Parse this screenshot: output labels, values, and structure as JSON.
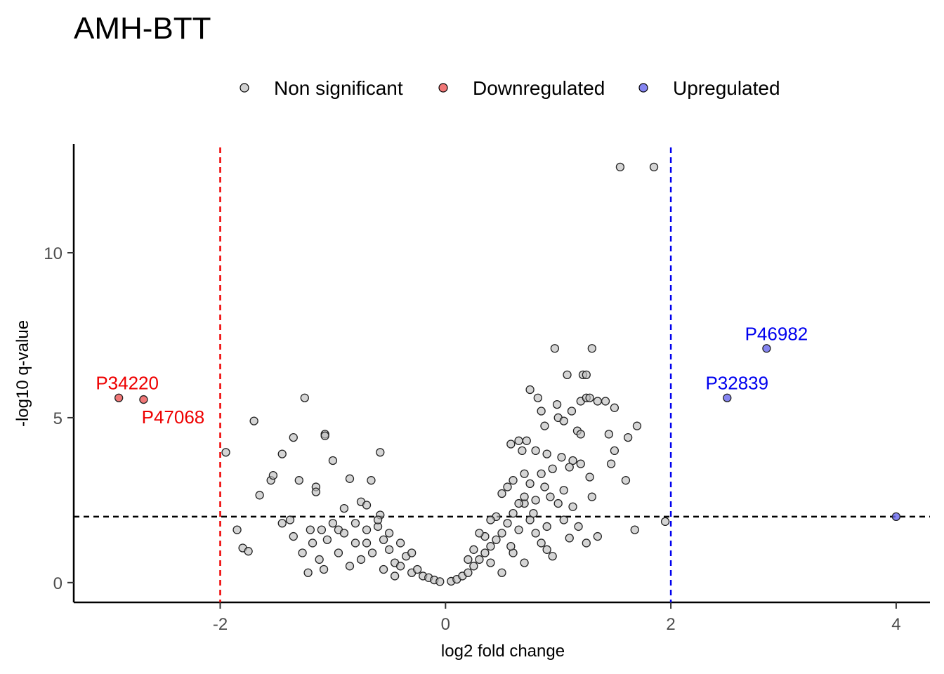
{
  "chart_data": {
    "type": "scatter",
    "title": "AMH-BTT",
    "xlabel": "log2 fold change",
    "ylabel": "-log10 q-value",
    "xlim": [
      -3.3,
      4.3
    ],
    "ylim": [
      -0.6,
      13.3
    ],
    "x_ticks": [
      {
        "value": -2,
        "label": "-2"
      },
      {
        "value": 0,
        "label": "0"
      },
      {
        "value": 2,
        "label": "2"
      },
      {
        "value": 4,
        "label": "4"
      }
    ],
    "y_ticks": [
      {
        "value": 0,
        "label": "0"
      },
      {
        "value": 5,
        "label": "5"
      },
      {
        "value": 10,
        "label": "10"
      }
    ],
    "grid": false,
    "legend_position": "top",
    "thresholds": {
      "fold_change_low": -2,
      "fold_change_high": 2,
      "q_value_line": 2
    },
    "series": [
      {
        "name": "Non significant",
        "color": "#bebebe",
        "points": [
          [
            1.55,
            12.6
          ],
          [
            1.85,
            12.6
          ],
          [
            0.97,
            7.1
          ],
          [
            1.3,
            7.1
          ],
          [
            1.08,
            6.3
          ],
          [
            1.22,
            6.3
          ],
          [
            1.25,
            6.3
          ],
          [
            0.75,
            5.85
          ],
          [
            0.82,
            5.6
          ],
          [
            1.2,
            5.5
          ],
          [
            1.25,
            5.6
          ],
          [
            1.28,
            5.6
          ],
          [
            1.35,
            5.5
          ],
          [
            1.42,
            5.5
          ],
          [
            1.5,
            5.3
          ],
          [
            0.99,
            5.4
          ],
          [
            0.85,
            5.2
          ],
          [
            1.12,
            5.2
          ],
          [
            1.0,
            5.0
          ],
          [
            1.05,
            4.9
          ],
          [
            0.88,
            4.75
          ],
          [
            1.17,
            4.6
          ],
          [
            1.2,
            4.5
          ],
          [
            1.45,
            4.5
          ],
          [
            1.7,
            4.75
          ],
          [
            1.62,
            4.4
          ],
          [
            1.5,
            4.0
          ],
          [
            1.47,
            3.6
          ],
          [
            1.6,
            3.1
          ],
          [
            0.72,
            4.3
          ],
          [
            0.65,
            4.3
          ],
          [
            0.58,
            4.2
          ],
          [
            0.68,
            4.0
          ],
          [
            0.8,
            4.0
          ],
          [
            0.9,
            3.9
          ],
          [
            1.03,
            3.8
          ],
          [
            1.13,
            3.7
          ],
          [
            1.2,
            3.6
          ],
          [
            1.28,
            3.2
          ],
          [
            1.1,
            3.5
          ],
          [
            0.95,
            3.45
          ],
          [
            0.85,
            3.3
          ],
          [
            0.7,
            3.3
          ],
          [
            0.6,
            3.1
          ],
          [
            0.75,
            3.0
          ],
          [
            0.88,
            2.9
          ],
          [
            1.05,
            2.8
          ],
          [
            0.93,
            2.6
          ],
          [
            0.8,
            2.5
          ],
          [
            1.3,
            2.6
          ],
          [
            0.7,
            2.4
          ],
          [
            1.0,
            2.4
          ],
          [
            1.13,
            2.3
          ],
          [
            1.18,
            1.7
          ],
          [
            1.35,
            1.4
          ],
          [
            1.68,
            1.6
          ],
          [
            1.95,
            1.85
          ],
          [
            1.25,
            1.2
          ],
          [
            1.1,
            1.35
          ],
          [
            -1.95,
            3.95
          ],
          [
            -1.85,
            1.6
          ],
          [
            -1.8,
            1.05
          ],
          [
            -1.75,
            0.95
          ],
          [
            -1.7,
            4.9
          ],
          [
            -1.65,
            2.65
          ],
          [
            -1.55,
            3.1
          ],
          [
            -1.53,
            3.25
          ],
          [
            -1.45,
            3.9
          ],
          [
            -1.45,
            1.8
          ],
          [
            -1.38,
            1.9
          ],
          [
            -1.35,
            4.4
          ],
          [
            -1.35,
            1.4
          ],
          [
            -1.3,
            3.1
          ],
          [
            -1.27,
            0.9
          ],
          [
            -1.25,
            5.6
          ],
          [
            -1.22,
            0.3
          ],
          [
            -1.18,
            1.2
          ],
          [
            -1.15,
            2.9
          ],
          [
            -1.15,
            2.75
          ],
          [
            -1.12,
            0.7
          ],
          [
            -1.1,
            1.6
          ],
          [
            -1.08,
            0.4
          ],
          [
            -1.07,
            4.5
          ],
          [
            -1.07,
            4.45
          ],
          [
            -1.0,
            3.7
          ],
          [
            -0.95,
            1.6
          ],
          [
            -0.9,
            2.25
          ],
          [
            -0.85,
            3.15
          ],
          [
            -0.75,
            2.45
          ],
          [
            -0.7,
            2.35
          ],
          [
            -0.66,
            3.1
          ],
          [
            -0.58,
            3.95
          ],
          [
            -0.58,
            2.05
          ],
          [
            -1.2,
            1.6
          ],
          [
            -1.05,
            1.3
          ],
          [
            -1.0,
            1.8
          ],
          [
            -0.9,
            1.5
          ],
          [
            -0.8,
            1.2
          ],
          [
            -0.7,
            1.6
          ],
          [
            -0.6,
            1.7
          ],
          [
            -0.55,
            1.3
          ],
          [
            -0.5,
            1.0
          ],
          [
            -0.45,
            0.6
          ],
          [
            -0.4,
            0.5
          ],
          [
            -0.35,
            0.8
          ],
          [
            -0.3,
            0.3
          ],
          [
            -0.25,
            0.4
          ],
          [
            -0.2,
            0.2
          ],
          [
            -0.15,
            0.15
          ],
          [
            -0.1,
            0.08
          ],
          [
            -0.05,
            0.03
          ],
          [
            0.05,
            0.04
          ],
          [
            0.1,
            0.1
          ],
          [
            0.15,
            0.2
          ],
          [
            0.2,
            0.3
          ],
          [
            0.25,
            0.5
          ],
          [
            0.3,
            0.7
          ],
          [
            0.35,
            0.9
          ],
          [
            0.4,
            1.1
          ],
          [
            0.45,
            1.3
          ],
          [
            0.5,
            1.5
          ],
          [
            0.55,
            1.8
          ],
          [
            0.6,
            2.1
          ],
          [
            0.65,
            2.4
          ],
          [
            0.7,
            2.6
          ],
          [
            0.75,
            1.9
          ],
          [
            0.8,
            1.5
          ],
          [
            0.85,
            1.2
          ],
          [
            0.9,
            1.0
          ],
          [
            0.95,
            0.8
          ],
          [
            0.35,
            1.4
          ],
          [
            0.45,
            2.0
          ],
          [
            0.5,
            2.7
          ],
          [
            0.55,
            2.9
          ],
          [
            0.4,
            1.9
          ],
          [
            0.3,
            1.5
          ],
          [
            0.25,
            1.0
          ],
          [
            0.2,
            0.7
          ],
          [
            0.6,
            0.9
          ],
          [
            0.7,
            0.6
          ],
          [
            0.5,
            0.3
          ],
          [
            0.4,
            0.6
          ],
          [
            -0.3,
            0.9
          ],
          [
            -0.4,
            1.2
          ],
          [
            -0.5,
            1.5
          ],
          [
            -0.6,
            1.9
          ],
          [
            -0.65,
            0.9
          ],
          [
            -0.75,
            0.7
          ],
          [
            -0.85,
            0.5
          ],
          [
            -0.95,
            0.9
          ],
          [
            -0.55,
            0.4
          ],
          [
            -0.45,
            0.2
          ],
          [
            -0.7,
            1.2
          ],
          [
            -0.8,
            1.8
          ],
          [
            0.9,
            1.7
          ],
          [
            1.05,
            1.9
          ],
          [
            0.78,
            2.1
          ],
          [
            0.65,
            1.6
          ],
          [
            0.58,
            1.1
          ]
        ]
      },
      {
        "name": "Downregulated",
        "color": "#ee5555",
        "points": [
          [
            -2.9,
            5.6
          ],
          [
            -2.68,
            5.55
          ]
        ],
        "labels": [
          "P34220",
          "P47068"
        ],
        "label_color": "#ee0000"
      },
      {
        "name": "Upregulated",
        "color": "#6666ee",
        "points": [
          [
            2.85,
            7.1
          ],
          [
            2.5,
            5.6
          ],
          [
            4.0,
            2.0
          ]
        ],
        "labels": [
          "P46982",
          "P32839",
          ""
        ],
        "label_color": "#0000ee"
      }
    ]
  }
}
